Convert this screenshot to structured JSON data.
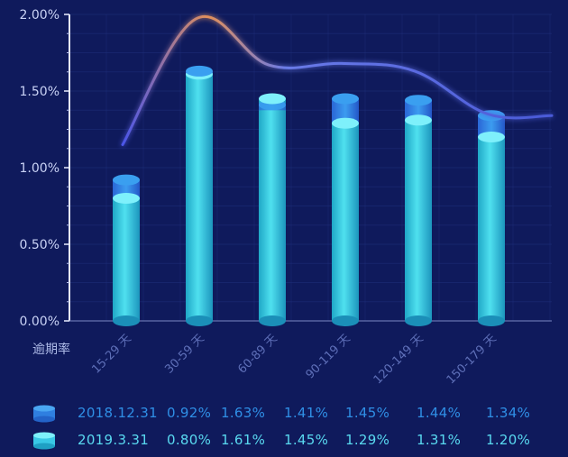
{
  "chart_data": {
    "type": "bar",
    "ylabel": "逾期率",
    "ylim": [
      0,
      2.0
    ],
    "y_ticks": [
      "0.00%",
      "0.50%",
      "1.00%",
      "1.50%",
      "2.00%"
    ],
    "categories": [
      "15-29 天",
      "30-59 天",
      "60-89 天",
      "90-119 天",
      "120-149 天",
      "150-179 天"
    ],
    "series": [
      {
        "name": "2018.12.31",
        "color": "#2f8fe6",
        "values": [
          0.92,
          1.63,
          1.41,
          1.45,
          1.44,
          1.34
        ],
        "labels": [
          "0.92%",
          "1.63%",
          "1.41%",
          "1.45%",
          "1.44%",
          "1.34%"
        ]
      },
      {
        "name": "2019.3.31",
        "color": "#59d9f0",
        "values": [
          0.8,
          1.61,
          1.45,
          1.29,
          1.31,
          1.2
        ],
        "labels": [
          "0.80%",
          "1.61%",
          "1.45%",
          "1.29%",
          "1.31%",
          "1.20%"
        ]
      }
    ],
    "line_values": [
      1.15,
      1.97,
      1.67,
      1.68,
      1.63,
      1.35
    ],
    "grid": true,
    "legend": "bottom"
  }
}
